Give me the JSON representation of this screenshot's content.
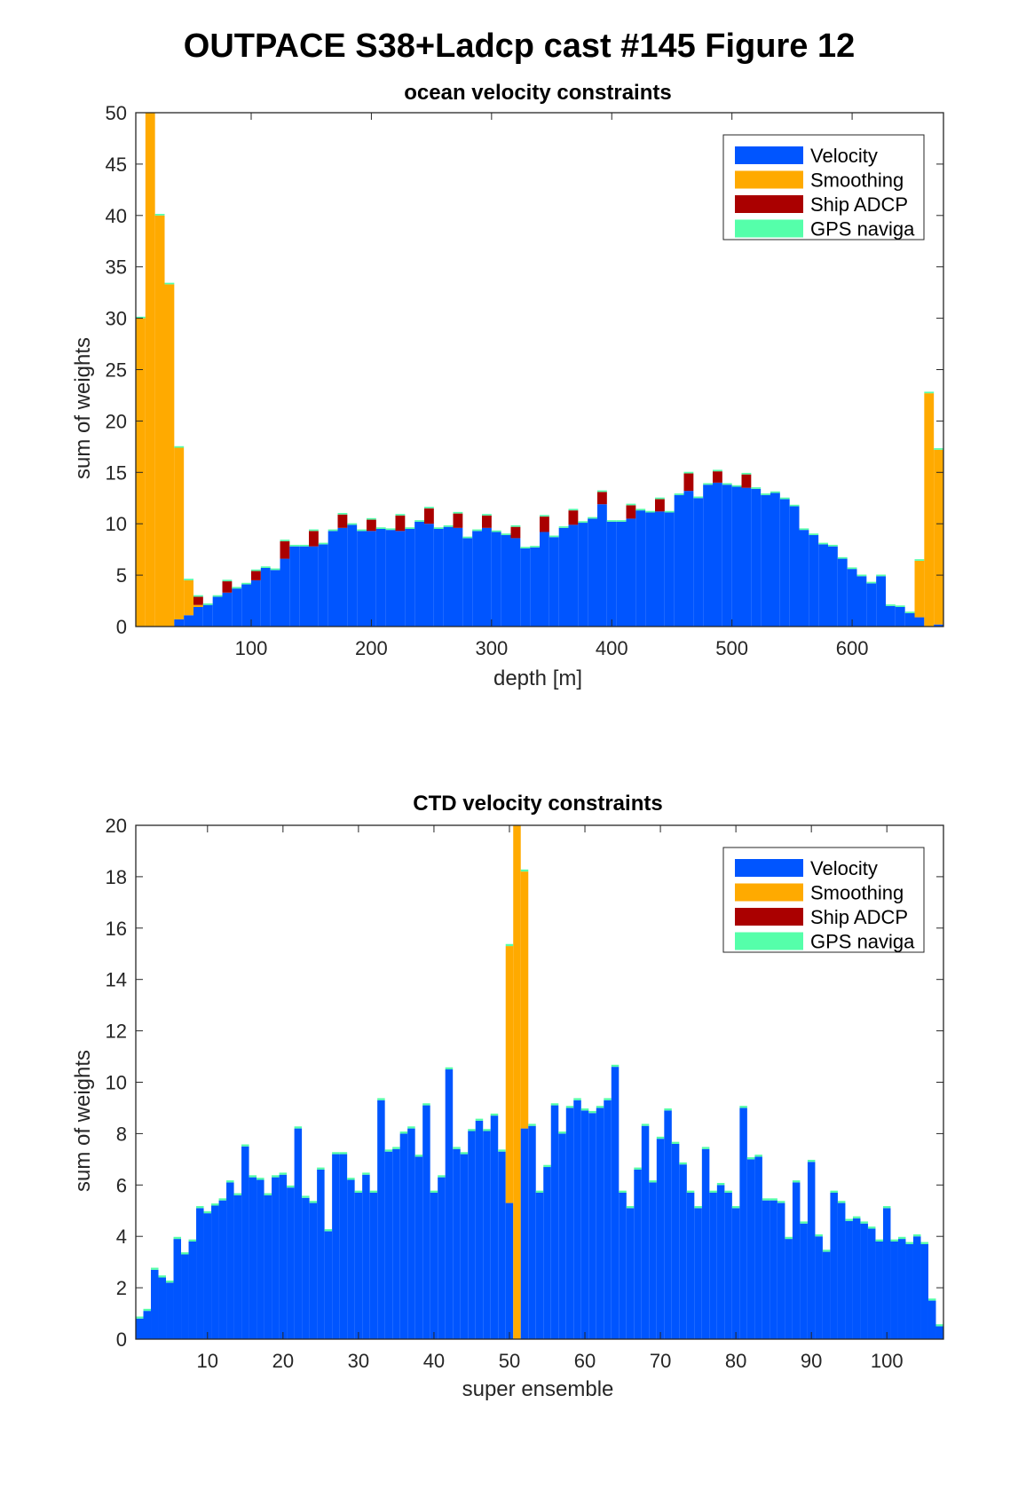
{
  "figure_title": "OUTPACE S38+Ladcp cast #145  Figure 12",
  "colors": {
    "velocity": "#0055ff",
    "smoothing": "#ffaa00",
    "ship_adcp": "#aa0000",
    "gps": "#55ffaa"
  },
  "chart_data": [
    {
      "type": "bar",
      "stacked": true,
      "title": "ocean velocity constraints",
      "xlabel": "depth [m]",
      "ylabel": "sum of weights",
      "xlim": [
        4,
        676
      ],
      "ylim": [
        0,
        50
      ],
      "xticks": [
        "100",
        "200",
        "300",
        "400",
        "500",
        "600"
      ],
      "xtick_values": [
        100,
        200,
        300,
        400,
        500,
        600
      ],
      "yticks": [
        "0",
        "5",
        "10",
        "15",
        "20",
        "25",
        "30",
        "35",
        "40",
        "45",
        "50"
      ],
      "ytick_values": [
        0,
        5,
        10,
        15,
        20,
        25,
        30,
        35,
        40,
        45,
        50
      ],
      "legend": [
        "Velocity",
        "Smoothing",
        "Ship ADCP",
        "GPS naviga"
      ],
      "legend_position": "top-right",
      "bin_width": 8,
      "x": [
        8,
        16,
        24,
        32,
        40,
        48,
        56,
        64,
        72,
        80,
        88,
        96,
        104,
        112,
        120,
        128,
        136,
        144,
        152,
        160,
        168,
        176,
        184,
        192,
        200,
        208,
        216,
        224,
        232,
        240,
        248,
        256,
        264,
        272,
        280,
        288,
        296,
        304,
        312,
        320,
        328,
        336,
        344,
        352,
        360,
        368,
        376,
        384,
        392,
        400,
        408,
        416,
        424,
        432,
        440,
        448,
        456,
        464,
        472,
        480,
        488,
        496,
        504,
        512,
        520,
        528,
        536,
        544,
        552,
        560,
        568,
        576,
        584,
        592,
        600,
        608,
        616,
        624,
        632,
        640,
        648,
        656,
        664,
        672
      ],
      "series": [
        {
          "name": "Velocity",
          "values": [
            0,
            0,
            0,
            0,
            0.7,
            1.1,
            1.9,
            2.1,
            2.9,
            3.3,
            3.7,
            4.1,
            4.5,
            5.7,
            5.5,
            6.6,
            7.8,
            7.8,
            7.8,
            8.0,
            9.3,
            9.6,
            9.9,
            9.3,
            9.3,
            9.5,
            9.4,
            9.3,
            9.5,
            10.2,
            10.0,
            9.5,
            9.7,
            9.6,
            8.6,
            9.3,
            9.6,
            9.2,
            8.9,
            8.6,
            7.6,
            7.7,
            9.2,
            8.7,
            9.6,
            9.9,
            10.1,
            10.5,
            11.9,
            10.2,
            10.2,
            10.5,
            11.3,
            11.1,
            11.2,
            11.1,
            12.8,
            13.2,
            12.5,
            13.8,
            14.0,
            13.8,
            13.6,
            13.5,
            13.4,
            12.8,
            13.0,
            12.4,
            11.7,
            9.4,
            8.9,
            8.0,
            7.8,
            6.6,
            5.6,
            4.9,
            4.2,
            4.9,
            2.0,
            1.9,
            1.3,
            0.9,
            0,
            0.2
          ]
        },
        {
          "name": "Smoothing",
          "values": [
            30,
            50,
            40,
            33.3,
            16.7,
            3.4,
            0.2,
            0,
            0,
            0,
            0,
            0,
            0,
            0,
            0,
            0,
            0,
            0,
            0,
            0,
            0,
            0,
            0,
            0,
            0,
            0,
            0,
            0,
            0,
            0,
            0,
            0,
            0,
            0,
            0,
            0,
            0,
            0,
            0,
            0,
            0,
            0,
            0,
            0,
            0,
            0,
            0,
            0,
            0,
            0,
            0,
            0,
            0,
            0,
            0,
            0,
            0,
            0,
            0,
            0,
            0,
            0,
            0,
            0,
            0,
            0,
            0,
            0,
            0,
            0,
            0,
            0,
            0,
            0,
            0,
            0,
            0,
            0,
            0,
            0,
            0,
            5.5,
            22.7,
            17.0
          ]
        },
        {
          "name": "Ship ADCP",
          "values": [
            0,
            0,
            0,
            0,
            0,
            0,
            0.8,
            0,
            0,
            1.1,
            0,
            0,
            0.9,
            0,
            0,
            1.7,
            0,
            0,
            1.5,
            0,
            0,
            1.3,
            0,
            0,
            1.1,
            0,
            0,
            1.5,
            0,
            0,
            1.5,
            0,
            0,
            1.4,
            0,
            0,
            1.2,
            0,
            0,
            1.1,
            0,
            0,
            1.5,
            0,
            0,
            1.4,
            0,
            0,
            1.2,
            0,
            0,
            1.3,
            0,
            0,
            1.2,
            0,
            0,
            1.7,
            0,
            0,
            1.1,
            0,
            0,
            1.3,
            0,
            0,
            0,
            0,
            0,
            0,
            0,
            0,
            0,
            0,
            0,
            0,
            0,
            0,
            0,
            0,
            0,
            0,
            0,
            0
          ]
        },
        {
          "name": "GPS naviga",
          "values": [
            0.15,
            0.15,
            0.15,
            0.15,
            0.15,
            0.15,
            0.15,
            0.15,
            0.15,
            0.15,
            0.15,
            0.15,
            0.15,
            0.15,
            0.15,
            0.15,
            0.15,
            0.15,
            0.15,
            0.15,
            0.15,
            0.15,
            0.15,
            0.15,
            0.15,
            0.15,
            0.15,
            0.15,
            0.15,
            0.15,
            0.15,
            0.15,
            0.15,
            0.15,
            0.15,
            0.15,
            0.15,
            0.15,
            0.15,
            0.15,
            0.15,
            0.15,
            0.15,
            0.15,
            0.15,
            0.15,
            0.15,
            0.15,
            0.15,
            0.15,
            0.15,
            0.15,
            0.15,
            0.15,
            0.15,
            0.15,
            0.15,
            0.15,
            0.15,
            0.15,
            0.15,
            0.15,
            0.15,
            0.15,
            0.15,
            0.15,
            0.15,
            0.15,
            0.15,
            0.15,
            0.15,
            0.15,
            0.15,
            0.15,
            0.15,
            0.15,
            0.15,
            0.15,
            0.15,
            0.15,
            0.15,
            0.15,
            0.15,
            0.15
          ]
        }
      ]
    },
    {
      "type": "bar",
      "stacked": true,
      "title": "CTD velocity constraints",
      "xlabel": "super ensemble",
      "ylabel": "sum of weights",
      "xlim": [
        0.5,
        107.5
      ],
      "ylim": [
        0,
        20
      ],
      "xticks": [
        "10",
        "20",
        "30",
        "40",
        "50",
        "60",
        "70",
        "80",
        "90",
        "100"
      ],
      "xtick_values": [
        10,
        20,
        30,
        40,
        50,
        60,
        70,
        80,
        90,
        100
      ],
      "yticks": [
        "0",
        "2",
        "4",
        "6",
        "8",
        "10",
        "12",
        "14",
        "16",
        "18",
        "20"
      ],
      "ytick_values": [
        0,
        2,
        4,
        6,
        8,
        10,
        12,
        14,
        16,
        18,
        20
      ],
      "legend": [
        "Velocity",
        "Smoothing",
        "Ship ADCP",
        "GPS naviga"
      ],
      "legend_position": "top-right",
      "bin_width": 1,
      "x": [
        1,
        2,
        3,
        4,
        5,
        6,
        7,
        8,
        9,
        10,
        11,
        12,
        13,
        14,
        15,
        16,
        17,
        18,
        19,
        20,
        21,
        22,
        23,
        24,
        25,
        26,
        27,
        28,
        29,
        30,
        31,
        32,
        33,
        34,
        35,
        36,
        37,
        38,
        39,
        40,
        41,
        42,
        43,
        44,
        45,
        46,
        47,
        48,
        49,
        50,
        51,
        52,
        53,
        54,
        55,
        56,
        57,
        58,
        59,
        60,
        61,
        62,
        63,
        64,
        65,
        66,
        67,
        68,
        69,
        70,
        71,
        72,
        73,
        74,
        75,
        76,
        77,
        78,
        79,
        80,
        81,
        82,
        83,
        84,
        85,
        86,
        87,
        88,
        89,
        90,
        91,
        92,
        93,
        94,
        95,
        96,
        97,
        98,
        99,
        100,
        101,
        102,
        103,
        104,
        105,
        106,
        107
      ],
      "series": [
        {
          "name": "Velocity",
          "values": [
            0.8,
            1.1,
            2.7,
            2.4,
            2.2,
            3.9,
            3.3,
            3.8,
            5.1,
            4.9,
            5.2,
            5.4,
            6.1,
            5.6,
            7.5,
            6.3,
            6.2,
            5.6,
            6.3,
            6.4,
            5.9,
            8.2,
            5.5,
            5.3,
            6.6,
            4.2,
            7.2,
            7.2,
            6.2,
            5.7,
            6.4,
            5.7,
            9.3,
            7.3,
            7.4,
            8.0,
            8.2,
            7.1,
            9.1,
            5.7,
            6.3,
            10.5,
            7.4,
            7.2,
            8.1,
            8.5,
            8.1,
            8.7,
            7.3,
            5.3,
            0,
            8.2,
            8.3,
            5.7,
            6.7,
            9.1,
            8.0,
            9.0,
            9.3,
            8.9,
            8.8,
            9.0,
            9.3,
            10.6,
            5.7,
            5.1,
            6.6,
            8.3,
            6.1,
            7.8,
            8.9,
            7.6,
            6.8,
            5.7,
            5.1,
            7.4,
            5.7,
            6.0,
            5.7,
            5.1,
            9.0,
            7.0,
            7.1,
            5.4,
            5.4,
            5.3,
            3.9,
            6.1,
            4.5,
            6.9,
            4.0,
            3.4,
            5.7,
            5.3,
            4.6,
            4.7,
            4.5,
            4.3,
            3.8,
            5.1,
            3.8,
            3.9,
            3.7,
            4.0,
            3.7,
            1.5,
            0.5
          ]
        },
        {
          "name": "Smoothing",
          "values": [
            0,
            0,
            0,
            0,
            0,
            0,
            0,
            0,
            0,
            0,
            0,
            0,
            0,
            0,
            0,
            0,
            0,
            0,
            0,
            0,
            0,
            0,
            0,
            0,
            0,
            0,
            0,
            0,
            0,
            0,
            0,
            0,
            0,
            0,
            0,
            0,
            0,
            0,
            0,
            0,
            0,
            0,
            0,
            0,
            0,
            0,
            0,
            0,
            0,
            10.0,
            20.0,
            10.0,
            0,
            0,
            0,
            0,
            0,
            0,
            0,
            0,
            0,
            0,
            0,
            0,
            0,
            0,
            0,
            0,
            0,
            0,
            0,
            0,
            0,
            0,
            0,
            0,
            0,
            0,
            0,
            0,
            0,
            0,
            0,
            0,
            0,
            0,
            0,
            0,
            0,
            0,
            0,
            0,
            0,
            0,
            0,
            0,
            0,
            0,
            0,
            0,
            0,
            0,
            0,
            0,
            0,
            0,
            0
          ]
        },
        {
          "name": "Ship ADCP",
          "values": [
            0,
            0,
            0,
            0,
            0,
            0,
            0,
            0,
            0,
            0,
            0,
            0,
            0,
            0,
            0,
            0,
            0,
            0,
            0,
            0,
            0,
            0,
            0,
            0,
            0,
            0,
            0,
            0,
            0,
            0,
            0,
            0,
            0,
            0,
            0,
            0,
            0,
            0,
            0,
            0,
            0,
            0,
            0,
            0,
            0,
            0,
            0,
            0,
            0,
            0,
            0,
            0,
            0,
            0,
            0,
            0,
            0,
            0,
            0,
            0,
            0,
            0,
            0,
            0,
            0,
            0,
            0,
            0,
            0,
            0,
            0,
            0,
            0,
            0,
            0,
            0,
            0,
            0,
            0,
            0,
            0,
            0,
            0,
            0,
            0,
            0,
            0,
            0,
            0,
            0,
            0,
            0,
            0,
            0,
            0,
            0,
            0,
            0,
            0,
            0,
            0,
            0,
            0,
            0,
            0,
            0,
            0
          ]
        },
        {
          "name": "GPS naviga",
          "values": [
            0.08,
            0.08,
            0.08,
            0.08,
            0.08,
            0.08,
            0.08,
            0.08,
            0.08,
            0.08,
            0.08,
            0.08,
            0.08,
            0.08,
            0.08,
            0.08,
            0.08,
            0.08,
            0.08,
            0.08,
            0.08,
            0.08,
            0.08,
            0.08,
            0.08,
            0.08,
            0.08,
            0.08,
            0.08,
            0.08,
            0.08,
            0.08,
            0.08,
            0.08,
            0.08,
            0.08,
            0.08,
            0.08,
            0.08,
            0.08,
            0.08,
            0.08,
            0.08,
            0.08,
            0.08,
            0.08,
            0.08,
            0.08,
            0.08,
            0.08,
            0.08,
            0.08,
            0.08,
            0.08,
            0.08,
            0.08,
            0.08,
            0.08,
            0.08,
            0.08,
            0.08,
            0.08,
            0.08,
            0.08,
            0.08,
            0.08,
            0.08,
            0.08,
            0.08,
            0.08,
            0.08,
            0.08,
            0.08,
            0.08,
            0.08,
            0.08,
            0.08,
            0.08,
            0.08,
            0.08,
            0.08,
            0.08,
            0.08,
            0.08,
            0.08,
            0.08,
            0.08,
            0.08,
            0.08,
            0.08,
            0.08,
            0.08,
            0.08,
            0.08,
            0.08,
            0.08,
            0.08,
            0.08,
            0.08,
            0.08,
            0.08,
            0.08,
            0.08,
            0.08,
            0.08,
            0.08,
            0.08
          ]
        }
      ]
    }
  ]
}
